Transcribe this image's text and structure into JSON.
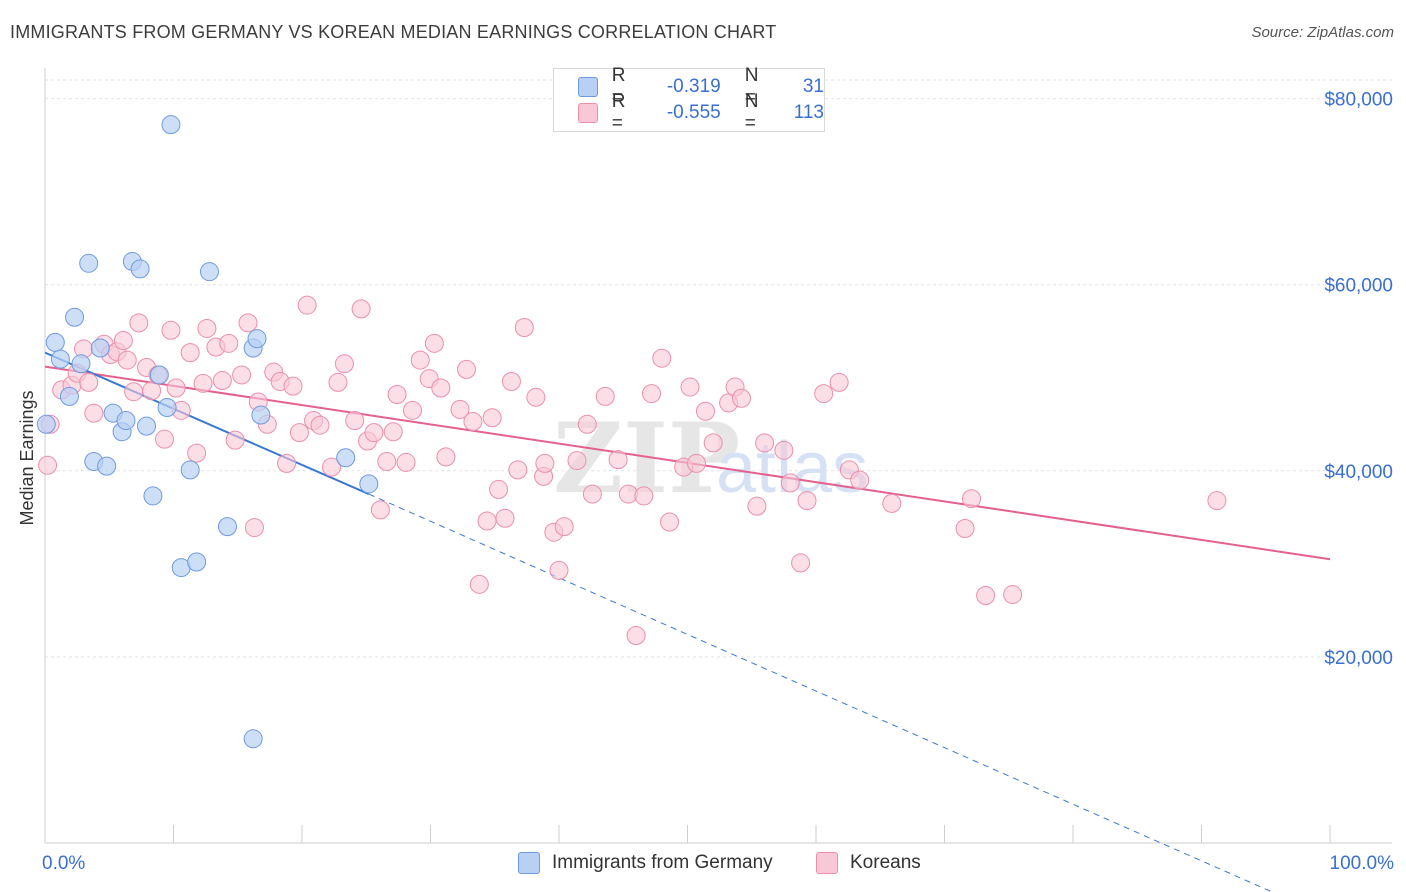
{
  "header": {
    "title": "IMMIGRANTS FROM GERMANY VS KOREAN MEDIAN EARNINGS CORRELATION CHART",
    "source": "Source: ZipAtlas.com"
  },
  "legend": {
    "r_label": "R =",
    "n_label": "N =",
    "rows": [
      {
        "r": "-0.319",
        "n": "31"
      },
      {
        "r": "-0.555",
        "n": "113"
      }
    ]
  },
  "bottom_legend": {
    "series_a": "Immigrants from Germany",
    "series_b": "Koreans"
  },
  "colors": {
    "blue_fill": "#b8d0f3",
    "blue_stroke": "#6f9be0",
    "blue_line": "#3a78d4",
    "pink_fill": "#f9c8d6",
    "pink_stroke": "#ec8fae",
    "pink_line": "#e4608f",
    "axis_text": "#3a6fd0",
    "grid": "#e3e3e3"
  },
  "chart_data": {
    "type": "scatter",
    "title": "IMMIGRANTS FROM GERMANY VS KOREAN MEDIAN EARNINGS CORRELATION CHART",
    "ylabel": "Median Earnings",
    "xlabel": "",
    "x_tick_labels": [
      "0.0%",
      "100.0%"
    ],
    "y_tick_labels": [
      "$20,000",
      "$40,000",
      "$60,000",
      "$80,000"
    ],
    "y_ticks": [
      20000,
      40000,
      60000,
      80000
    ],
    "xlim": [
      0,
      100
    ],
    "ylim": [
      0,
      82000
    ],
    "watermark": "ZIPatlas",
    "series": [
      {
        "name": "Immigrants from Germany",
        "points": [
          [
            0.1,
            45000
          ],
          [
            0.8,
            53800
          ],
          [
            1.2,
            52000
          ],
          [
            1.9,
            48000
          ],
          [
            2.3,
            56500
          ],
          [
            2.8,
            51500
          ],
          [
            3.4,
            62300
          ],
          [
            3.8,
            41000
          ],
          [
            4.3,
            53200
          ],
          [
            4.8,
            40500
          ],
          [
            5.3,
            46200
          ],
          [
            6.0,
            44200
          ],
          [
            6.3,
            45400
          ],
          [
            6.8,
            62500
          ],
          [
            7.4,
            61700
          ],
          [
            7.9,
            44800
          ],
          [
            8.4,
            37300
          ],
          [
            8.9,
            50300
          ],
          [
            9.5,
            46800
          ],
          [
            9.8,
            77200
          ],
          [
            10.6,
            29600
          ],
          [
            11.3,
            40100
          ],
          [
            11.8,
            30200
          ],
          [
            12.8,
            61400
          ],
          [
            14.2,
            34000
          ],
          [
            16.2,
            11200
          ],
          [
            16.8,
            46000
          ],
          [
            16.2,
            53200
          ],
          [
            16.5,
            54200
          ],
          [
            23.4,
            41400
          ],
          [
            25.2,
            38600
          ]
        ],
        "trend": {
          "x0": 0,
          "y0": 52700,
          "x1": 25.2,
          "y1": 37500,
          "dashed_to": {
            "x": 100,
            "y": -8000
          }
        }
      },
      {
        "name": "Koreans",
        "points": [
          [
            0.2,
            40600
          ],
          [
            0.4,
            45000
          ],
          [
            1.3,
            48700
          ],
          [
            2.1,
            49200
          ],
          [
            2.5,
            50500
          ],
          [
            3.0,
            53100
          ],
          [
            3.4,
            49500
          ],
          [
            3.8,
            46200
          ],
          [
            4.6,
            53600
          ],
          [
            5.1,
            52500
          ],
          [
            5.6,
            52800
          ],
          [
            6.1,
            54000
          ],
          [
            6.4,
            51900
          ],
          [
            6.9,
            48500
          ],
          [
            7.3,
            55900
          ],
          [
            7.9,
            51100
          ],
          [
            8.3,
            48600
          ],
          [
            8.8,
            50300
          ],
          [
            9.3,
            43400
          ],
          [
            9.8,
            55100
          ],
          [
            10.2,
            48900
          ],
          [
            10.6,
            46500
          ],
          [
            11.3,
            52700
          ],
          [
            11.8,
            41900
          ],
          [
            12.3,
            49400
          ],
          [
            12.6,
            55300
          ],
          [
            13.3,
            53300
          ],
          [
            13.8,
            49700
          ],
          [
            14.3,
            53700
          ],
          [
            14.8,
            43300
          ],
          [
            15.3,
            50300
          ],
          [
            15.8,
            55900
          ],
          [
            16.3,
            33900
          ],
          [
            16.6,
            47400
          ],
          [
            17.3,
            45000
          ],
          [
            17.8,
            50600
          ],
          [
            18.3,
            49600
          ],
          [
            18.8,
            40800
          ],
          [
            19.3,
            49100
          ],
          [
            19.8,
            44100
          ],
          [
            20.4,
            57800
          ],
          [
            20.9,
            45400
          ],
          [
            21.4,
            44900
          ],
          [
            22.3,
            40400
          ],
          [
            22.8,
            49500
          ],
          [
            23.3,
            51500
          ],
          [
            24.1,
            45400
          ],
          [
            24.6,
            57400
          ],
          [
            25.1,
            43200
          ],
          [
            25.6,
            44100
          ],
          [
            26.1,
            35800
          ],
          [
            26.6,
            41000
          ],
          [
            27.1,
            44200
          ],
          [
            27.4,
            48200
          ],
          [
            28.1,
            40900
          ],
          [
            28.6,
            46500
          ],
          [
            29.2,
            51900
          ],
          [
            29.9,
            49900
          ],
          [
            30.3,
            53700
          ],
          [
            30.8,
            48900
          ],
          [
            31.2,
            41500
          ],
          [
            32.3,
            46600
          ],
          [
            32.8,
            50900
          ],
          [
            33.3,
            45300
          ],
          [
            33.8,
            27800
          ],
          [
            34.4,
            34600
          ],
          [
            34.8,
            45700
          ],
          [
            35.3,
            38000
          ],
          [
            35.8,
            34900
          ],
          [
            36.3,
            49600
          ],
          [
            36.8,
            40100
          ],
          [
            37.3,
            55400
          ],
          [
            38.2,
            47900
          ],
          [
            38.8,
            39400
          ],
          [
            38.9,
            40800
          ],
          [
            39.6,
            33400
          ],
          [
            40.0,
            29300
          ],
          [
            40.4,
            34000
          ],
          [
            41.4,
            41100
          ],
          [
            42.2,
            45000
          ],
          [
            42.6,
            37500
          ],
          [
            43.6,
            48000
          ],
          [
            44.6,
            41200
          ],
          [
            45.4,
            37500
          ],
          [
            46.0,
            22300
          ],
          [
            46.6,
            37300
          ],
          [
            47.2,
            48300
          ],
          [
            48.0,
            52100
          ],
          [
            48.6,
            34500
          ],
          [
            49.7,
            40400
          ],
          [
            50.2,
            49000
          ],
          [
            50.7,
            40800
          ],
          [
            51.4,
            46400
          ],
          [
            52.0,
            43000
          ],
          [
            53.2,
            47300
          ],
          [
            53.7,
            49000
          ],
          [
            54.2,
            47800
          ],
          [
            55.4,
            36200
          ],
          [
            56.0,
            43000
          ],
          [
            57.5,
            42200
          ],
          [
            58.0,
            38700
          ],
          [
            58.8,
            30100
          ],
          [
            59.3,
            36800
          ],
          [
            60.6,
            48300
          ],
          [
            61.8,
            49500
          ],
          [
            62.6,
            40100
          ],
          [
            63.4,
            39000
          ],
          [
            65.9,
            36500
          ],
          [
            71.6,
            33800
          ],
          [
            73.2,
            26600
          ],
          [
            75.3,
            26700
          ],
          [
            91.2,
            36800
          ],
          [
            72.1,
            37000
          ]
        ],
        "trend": {
          "x0": 0,
          "y0": 51200,
          "x1": 100,
          "y1": 30500
        }
      }
    ],
    "grid": true,
    "legend_position": "top-center"
  }
}
